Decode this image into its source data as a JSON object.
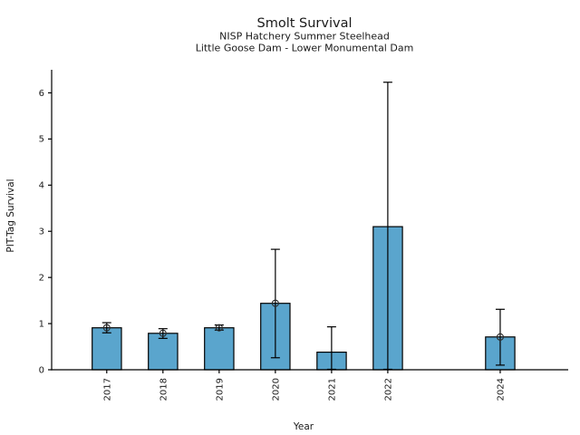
{
  "chart_data": {
    "type": "bar",
    "title": "Smolt Survival",
    "subtitle1": "NISP Hatchery Summer Steelhead",
    "subtitle2": "Little Goose Dam - Lower Monumental Dam",
    "xlabel": "Year",
    "ylabel": "PIT-Tag Survival",
    "categories": [
      2017,
      2018,
      2019,
      2020,
      2021,
      2022,
      2024
    ],
    "values": [
      0.91,
      0.79,
      0.91,
      1.44,
      0.38,
      3.1,
      0.71
    ],
    "error_low": [
      0.8,
      0.68,
      0.86,
      0.26,
      0.01,
      0.01,
      0.1
    ],
    "error_high": [
      1.02,
      0.89,
      0.97,
      2.61,
      0.93,
      6.23,
      1.31
    ],
    "point_marker": [
      true,
      true,
      true,
      true,
      false,
      false,
      true
    ],
    "yticks": [
      0,
      1,
      2,
      3,
      4,
      5,
      6
    ],
    "ylim": [
      0,
      6.5
    ],
    "xlim": [
      2016.02,
      2025.21
    ],
    "grid": false,
    "legend": "none",
    "bar_color": "#5AA5CD",
    "bar_edge_color": "#000000",
    "error_color": "#000000",
    "axis_color": "#000000"
  }
}
